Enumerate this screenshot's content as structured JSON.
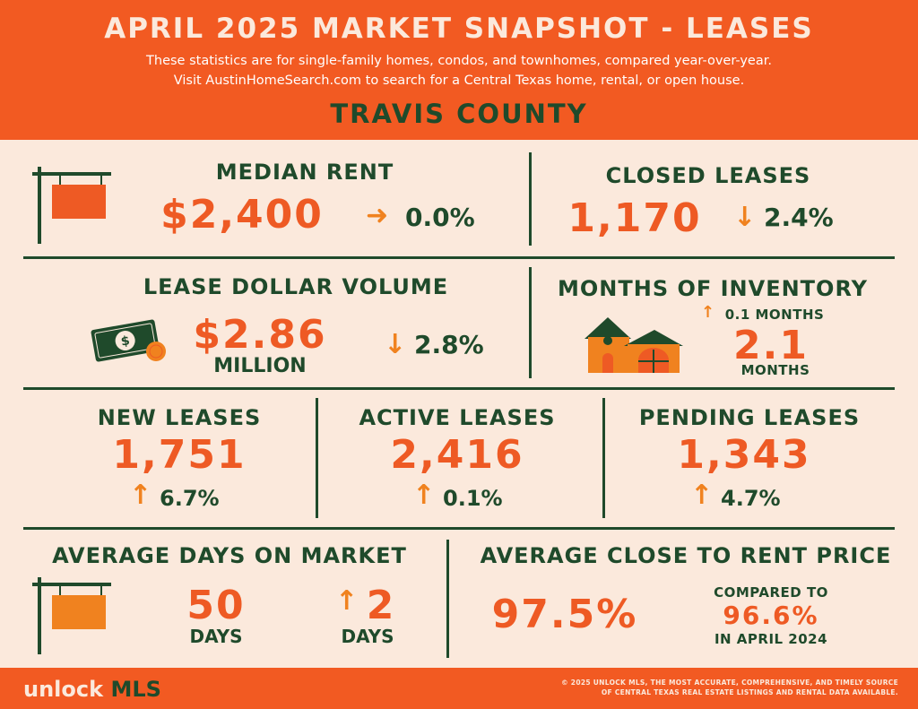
{
  "header": {
    "title": "APRIL 2025 MARKET SNAPSHOT - LEASES",
    "subtitle_line1": "These statistics are for single-family homes, condos, and townhomes, compared year-over-year.",
    "subtitle_line2": "Visit AustinHomeSearch.com to search for a Central Texas home, rental, or open house.",
    "county": "TRAVIS COUNTY"
  },
  "median_rent": {
    "label": "MEDIAN RENT",
    "value": "$2,400",
    "change": "0.0%",
    "direction": "flat",
    "icon": "sign-post-icon"
  },
  "closed_leases": {
    "label": "CLOSED LEASES",
    "value": "1,170",
    "change": "2.4%",
    "direction": "down"
  },
  "lease_dollar_volume": {
    "label": "LEASE DOLLAR VOLUME",
    "value": "$2.86",
    "unit": "MILLION",
    "change": "2.8%",
    "direction": "down",
    "icon": "money-icon"
  },
  "months_of_inventory": {
    "label": "MONTHS OF INVENTORY",
    "change": "0.1  MONTHS",
    "direction": "up",
    "value": "2.1",
    "unit": "MONTHS",
    "icon": "house-icon"
  },
  "new_leases": {
    "label": "NEW LEASES",
    "value": "1,751",
    "change": "6.7%",
    "direction": "up"
  },
  "active_leases": {
    "label": "ACTIVE LEASES",
    "value": "2,416",
    "change": "0.1%",
    "direction": "up"
  },
  "pending_leases": {
    "label": "PENDING LEASES",
    "value": "1,343",
    "change": "4.7%",
    "direction": "up"
  },
  "avg_days_on_market": {
    "label": "AVERAGE DAYS ON MARKET",
    "value": "50",
    "unit": "DAYS",
    "change": "2",
    "change_unit": "DAYS",
    "direction": "up",
    "icon": "sign-post-icon"
  },
  "avg_close_to_rent": {
    "label": "AVERAGE CLOSE TO RENT PRICE",
    "value": "97.5%",
    "compared_label": "COMPARED TO",
    "compared_value": "96.6%",
    "compared_period": "IN APRIL 2024"
  },
  "footer": {
    "logo_part1": "unlock",
    "logo_part2": "MLS",
    "copyright_line1": "© 2025 UNLOCK MLS, THE MOST ACCURATE, COMPREHENSIVE, AND TIMELY SOURCE",
    "copyright_line2": "OF CENTRAL TEXAS REAL ESTATE LISTINGS AND RENTAL DATA AVAILABLE."
  },
  "colors": {
    "orange": "#f25a22",
    "dark_green": "#1f4a2b",
    "cream": "#fbe9dc",
    "arrow_orange": "#f0821f"
  }
}
